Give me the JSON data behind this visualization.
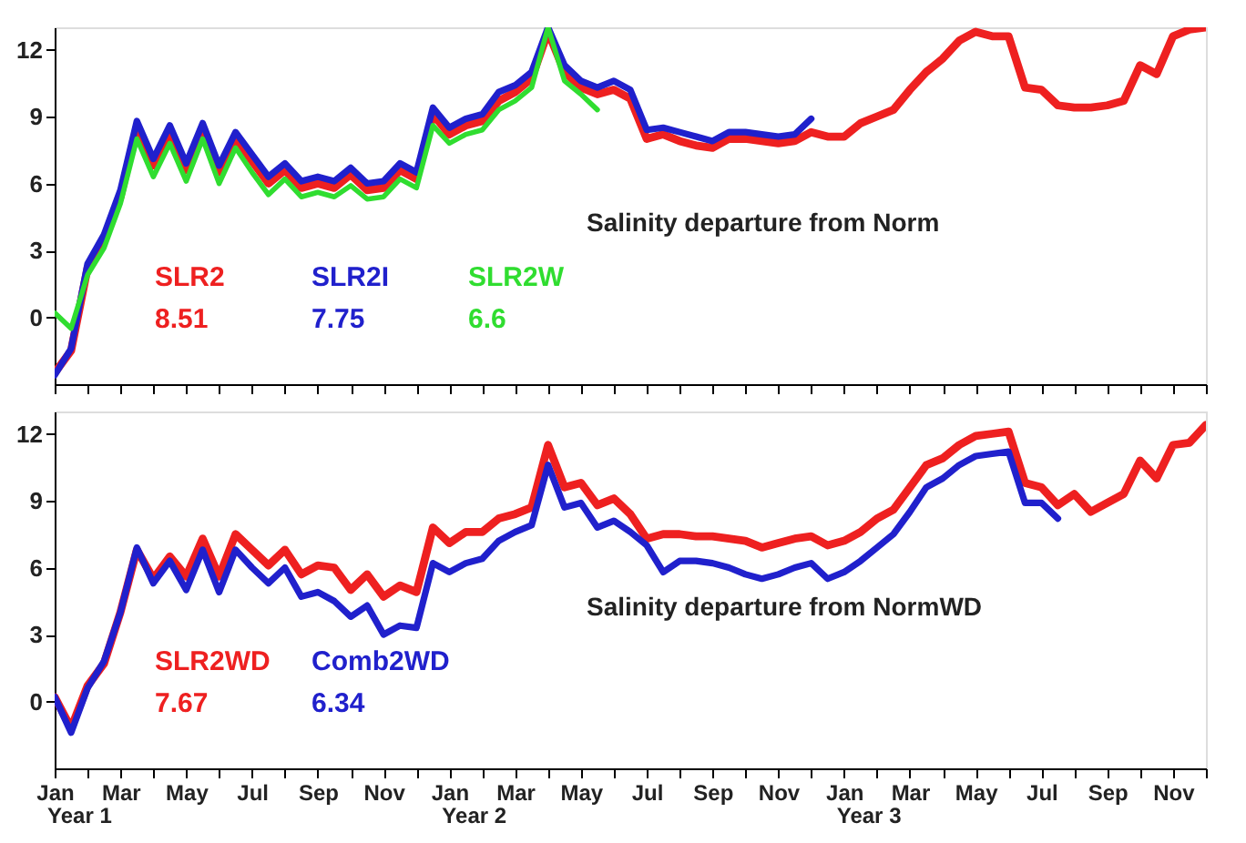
{
  "chart_data": [
    {
      "type": "line",
      "ylim": [
        -3,
        13
      ],
      "yticks": [
        0,
        3,
        6,
        9,
        12
      ],
      "categories": [
        null,
        null,
        null,
        null,
        null,
        null,
        null,
        null,
        null,
        null,
        null,
        null,
        null,
        null,
        null,
        null,
        null,
        null,
        null,
        null,
        null,
        null,
        null,
        null,
        null,
        null,
        null,
        null,
        null,
        null,
        null,
        null,
        null,
        null,
        null,
        null,
        null,
        null,
        null,
        null,
        null,
        null,
        null,
        null,
        null,
        null,
        null,
        null,
        null,
        null,
        null,
        null,
        null,
        null,
        null,
        null,
        null,
        null,
        null,
        null,
        null,
        null,
        null,
        null,
        null,
        null,
        null,
        null,
        null,
        null,
        null
      ],
      "tick_labels": "y",
      "legend": "left",
      "annotations": [
        "Salinity departure from Norm",
        "8.51",
        "7.75",
        "6.6"
      ],
      "series": [
        {
          "name": "SLR2",
          "color": "#ee2020",
          "values": [
            -2.5,
            -1.5,
            2.2,
            3.4,
            5.4,
            8.5,
            6.8,
            8.3,
            6.6,
            8.4,
            6.5,
            8.0,
            7.0,
            6.0,
            6.6,
            5.8,
            6.0,
            5.8,
            6.4,
            5.7,
            5.8,
            6.6,
            6.2,
            9.1,
            8.2,
            8.6,
            8.8,
            9.7,
            10.1,
            10.7,
            12.8,
            11.0,
            10.3,
            10.0,
            10.2,
            9.8,
            8.0,
            8.2,
            7.9,
            7.7,
            7.6,
            8.0,
            8.0,
            7.9,
            7.8,
            7.9,
            8.3,
            8.1,
            8.1,
            8.7,
            9.0,
            9.3,
            10.2,
            11.0,
            11.6,
            12.4,
            12.8,
            12.6,
            12.6,
            10.3,
            10.2,
            9.5,
            9.4,
            9.4,
            9.5,
            9.7,
            11.3,
            10.9,
            12.6,
            12.9,
            13.0
          ]
        },
        {
          "name": "SLR2I",
          "color": "#2020cc",
          "values": [
            -2.6,
            -1.4,
            2.4,
            3.7,
            5.7,
            8.8,
            7.1,
            8.6,
            6.9,
            8.7,
            6.8,
            8.3,
            7.3,
            6.3,
            6.9,
            6.1,
            6.3,
            6.1,
            6.7,
            6.0,
            6.1,
            6.9,
            6.5,
            9.4,
            8.5,
            8.9,
            9.1,
            10.1,
            10.4,
            11.0,
            13.0,
            11.3,
            10.6,
            10.3,
            10.6,
            10.2,
            8.4,
            8.5,
            8.3,
            8.1,
            7.9,
            8.3,
            8.3,
            8.2,
            8.1,
            8.2,
            8.9,
            null,
            null,
            null,
            null,
            null,
            null,
            null,
            null,
            null,
            null,
            null,
            null,
            null,
            null,
            null,
            null,
            null,
            null,
            null,
            null,
            null,
            null,
            null,
            null
          ]
        },
        {
          "name": "SLR2W",
          "color": "#30dd30",
          "values": [
            0.2,
            -0.5,
            1.9,
            3.1,
            5.1,
            8.0,
            6.3,
            7.8,
            6.1,
            8.0,
            6.0,
            7.6,
            6.5,
            5.5,
            6.2,
            5.4,
            5.6,
            5.4,
            5.9,
            5.3,
            5.4,
            6.2,
            5.8,
            8.6,
            7.8,
            8.2,
            8.4,
            9.3,
            9.7,
            10.3,
            13.0,
            10.6,
            10.0,
            9.3,
            null,
            null,
            null,
            null,
            null,
            null,
            null,
            null,
            null,
            null,
            null,
            null,
            null,
            null,
            null,
            null,
            null,
            null,
            null,
            null,
            null,
            null,
            null,
            null,
            null,
            null,
            null,
            null,
            null,
            null,
            null,
            null,
            null,
            null,
            null,
            null,
            null
          ]
        }
      ]
    },
    {
      "type": "line",
      "ylim": [
        -3,
        13
      ],
      "yticks": [
        0,
        3,
        6,
        9,
        12
      ],
      "categories": [
        "Jan",
        null,
        null,
        null,
        "Mar",
        null,
        null,
        null,
        "May",
        null,
        null,
        null,
        "Jul",
        null,
        null,
        null,
        "Sep",
        null,
        null,
        null,
        "Nov",
        null,
        null,
        null,
        "Jan",
        null,
        null,
        null,
        "Mar",
        null,
        null,
        null,
        "May",
        null,
        null,
        null,
        "Jul",
        null,
        null,
        null,
        "Sep",
        null,
        null,
        null,
        "Nov",
        null,
        null,
        null,
        "Jan",
        null,
        null,
        null,
        "Mar",
        null,
        null,
        null,
        "May",
        null,
        null,
        null,
        "Jul",
        null,
        null,
        null,
        "Sep",
        null,
        null,
        null,
        "Nov",
        null,
        null
      ],
      "legend": "left",
      "annotations": [
        "Salinity departure from NormWD",
        "7.67",
        "6.34",
        "Year 1",
        "Year 2",
        "Year 3"
      ],
      "series": [
        {
          "name": "SLR2WD",
          "color": "#ee2020",
          "values": [
            0.2,
            -1.2,
            0.7,
            1.7,
            4.0,
            6.8,
            5.5,
            6.5,
            5.6,
            7.3,
            5.6,
            7.5,
            6.8,
            6.1,
            6.8,
            5.7,
            6.1,
            6.0,
            5.0,
            5.7,
            4.7,
            5.2,
            4.9,
            7.8,
            7.1,
            7.6,
            7.6,
            8.2,
            8.4,
            8.7,
            11.5,
            9.6,
            9.8,
            8.8,
            9.1,
            8.4,
            7.3,
            7.5,
            7.5,
            7.4,
            7.4,
            7.3,
            7.2,
            6.9,
            7.1,
            7.3,
            7.4,
            7.0,
            7.2,
            7.6,
            8.2,
            8.6,
            9.6,
            10.6,
            10.9,
            11.5,
            11.9,
            12.0,
            12.1,
            9.8,
            9.6,
            8.8,
            9.3,
            8.5,
            8.9,
            9.3,
            10.8,
            10.0,
            11.5,
            11.6,
            12.4
          ]
        },
        {
          "name": "Comb2WD",
          "color": "#2020cc",
          "values": [
            0.2,
            -1.4,
            0.6,
            1.8,
            4.0,
            6.9,
            5.3,
            6.3,
            5.0,
            6.8,
            4.9,
            6.8,
            6.0,
            5.3,
            6.0,
            4.7,
            4.9,
            4.5,
            3.8,
            4.3,
            3.0,
            3.4,
            3.3,
            6.2,
            5.8,
            6.2,
            6.4,
            7.2,
            7.6,
            7.9,
            10.6,
            8.7,
            8.9,
            7.8,
            8.1,
            7.6,
            7.0,
            5.8,
            6.3,
            6.3,
            6.2,
            6.0,
            5.7,
            5.5,
            5.7,
            6.0,
            6.2,
            5.5,
            5.8,
            6.3,
            6.9,
            7.5,
            8.5,
            9.6,
            10.0,
            10.6,
            11.0,
            11.1,
            11.2,
            8.9,
            8.9,
            8.2,
            null,
            null,
            null,
            null,
            null,
            null,
            null,
            null,
            null
          ]
        }
      ]
    }
  ]
}
